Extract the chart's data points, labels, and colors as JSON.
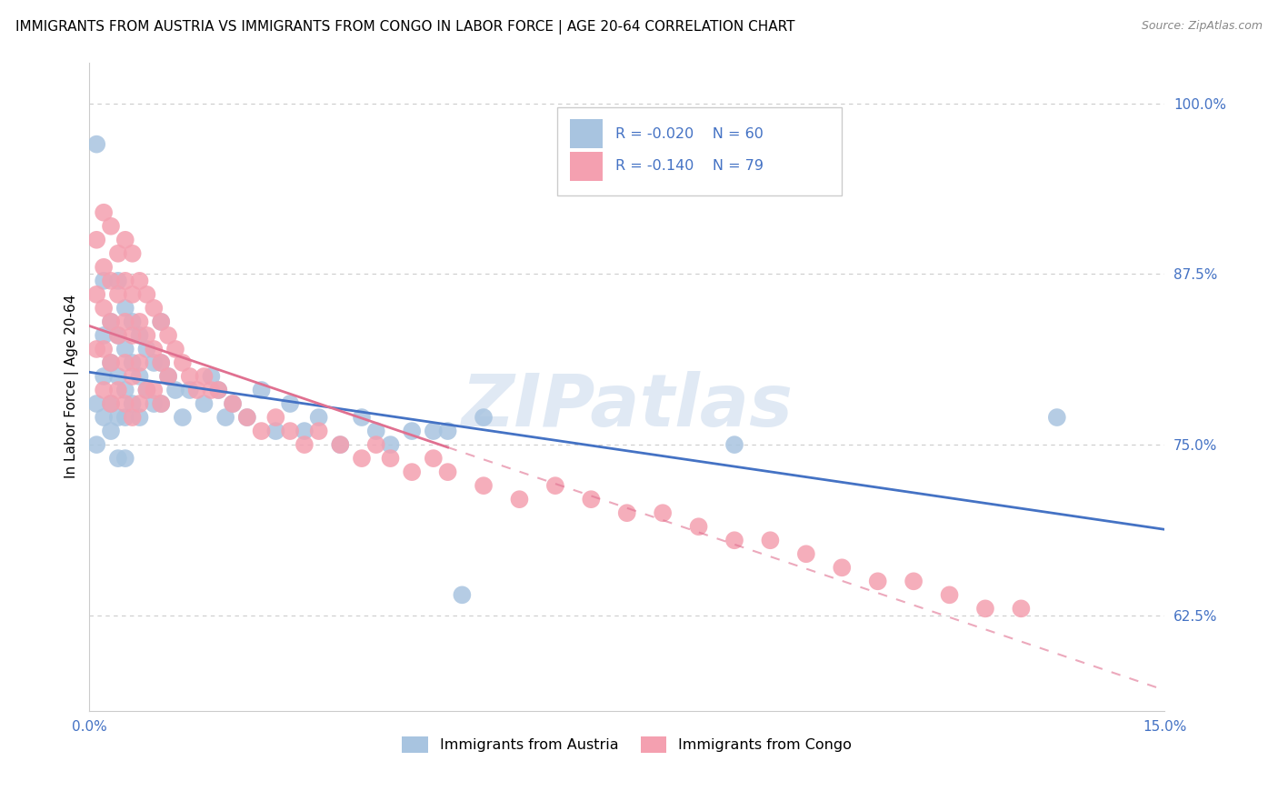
{
  "title": "IMMIGRANTS FROM AUSTRIA VS IMMIGRANTS FROM CONGO IN LABOR FORCE | AGE 20-64 CORRELATION CHART",
  "source": "Source: ZipAtlas.com",
  "ylabel": "In Labor Force | Age 20-64",
  "xlim": [
    0.0,
    0.15
  ],
  "ylim": [
    0.555,
    1.03
  ],
  "ytick_labels": [
    "62.5%",
    "75.0%",
    "87.5%",
    "100.0%"
  ],
  "ytick_values": [
    0.625,
    0.75,
    0.875,
    1.0
  ],
  "xtick_labels": [
    "0.0%",
    "15.0%"
  ],
  "xtick_values": [
    0.0,
    0.15
  ],
  "R_austria": -0.02,
  "N_austria": 60,
  "R_congo": -0.14,
  "N_congo": 79,
  "austria_color": "#a8c4e0",
  "congo_color": "#f4a0b0",
  "austria_line_color": "#4472c4",
  "congo_line_color": "#e07090",
  "background_color": "#ffffff",
  "watermark": "ZIPatlas",
  "austria_scatter_x": [
    0.001,
    0.001,
    0.001,
    0.002,
    0.002,
    0.002,
    0.002,
    0.003,
    0.003,
    0.003,
    0.003,
    0.004,
    0.004,
    0.004,
    0.004,
    0.004,
    0.005,
    0.005,
    0.005,
    0.005,
    0.005,
    0.006,
    0.006,
    0.006,
    0.007,
    0.007,
    0.007,
    0.008,
    0.008,
    0.009,
    0.009,
    0.01,
    0.01,
    0.01,
    0.011,
    0.012,
    0.013,
    0.014,
    0.016,
    0.017,
    0.018,
    0.019,
    0.02,
    0.022,
    0.024,
    0.026,
    0.028,
    0.03,
    0.032,
    0.035,
    0.038,
    0.04,
    0.042,
    0.045,
    0.048,
    0.05,
    0.052,
    0.055,
    0.09,
    0.135
  ],
  "austria_scatter_y": [
    0.97,
    0.78,
    0.75,
    0.87,
    0.83,
    0.8,
    0.77,
    0.84,
    0.81,
    0.78,
    0.76,
    0.87,
    0.83,
    0.8,
    0.77,
    0.74,
    0.85,
    0.82,
    0.79,
    0.77,
    0.74,
    0.84,
    0.81,
    0.78,
    0.83,
    0.8,
    0.77,
    0.82,
    0.79,
    0.81,
    0.78,
    0.84,
    0.81,
    0.78,
    0.8,
    0.79,
    0.77,
    0.79,
    0.78,
    0.8,
    0.79,
    0.77,
    0.78,
    0.77,
    0.79,
    0.76,
    0.78,
    0.76,
    0.77,
    0.75,
    0.77,
    0.76,
    0.75,
    0.76,
    0.76,
    0.76,
    0.64,
    0.77,
    0.75,
    0.77
  ],
  "congo_scatter_x": [
    0.001,
    0.001,
    0.001,
    0.002,
    0.002,
    0.002,
    0.002,
    0.002,
    0.003,
    0.003,
    0.003,
    0.003,
    0.003,
    0.004,
    0.004,
    0.004,
    0.004,
    0.005,
    0.005,
    0.005,
    0.005,
    0.005,
    0.006,
    0.006,
    0.006,
    0.006,
    0.006,
    0.007,
    0.007,
    0.007,
    0.007,
    0.008,
    0.008,
    0.008,
    0.009,
    0.009,
    0.009,
    0.01,
    0.01,
    0.01,
    0.011,
    0.011,
    0.012,
    0.013,
    0.014,
    0.015,
    0.016,
    0.017,
    0.018,
    0.02,
    0.022,
    0.024,
    0.026,
    0.028,
    0.03,
    0.032,
    0.035,
    0.038,
    0.04,
    0.042,
    0.045,
    0.048,
    0.05,
    0.055,
    0.06,
    0.065,
    0.07,
    0.075,
    0.08,
    0.085,
    0.09,
    0.095,
    0.1,
    0.105,
    0.11,
    0.115,
    0.12,
    0.125,
    0.13
  ],
  "congo_scatter_y": [
    0.9,
    0.86,
    0.82,
    0.92,
    0.88,
    0.85,
    0.82,
    0.79,
    0.91,
    0.87,
    0.84,
    0.81,
    0.78,
    0.89,
    0.86,
    0.83,
    0.79,
    0.9,
    0.87,
    0.84,
    0.81,
    0.78,
    0.89,
    0.86,
    0.83,
    0.8,
    0.77,
    0.87,
    0.84,
    0.81,
    0.78,
    0.86,
    0.83,
    0.79,
    0.85,
    0.82,
    0.79,
    0.84,
    0.81,
    0.78,
    0.83,
    0.8,
    0.82,
    0.81,
    0.8,
    0.79,
    0.8,
    0.79,
    0.79,
    0.78,
    0.77,
    0.76,
    0.77,
    0.76,
    0.75,
    0.76,
    0.75,
    0.74,
    0.75,
    0.74,
    0.73,
    0.74,
    0.73,
    0.72,
    0.71,
    0.72,
    0.71,
    0.7,
    0.7,
    0.69,
    0.68,
    0.68,
    0.67,
    0.66,
    0.65,
    0.65,
    0.64,
    0.63,
    0.63
  ],
  "grid_color": "#cccccc",
  "title_fontsize": 11,
  "label_fontsize": 11,
  "tick_fontsize": 11
}
